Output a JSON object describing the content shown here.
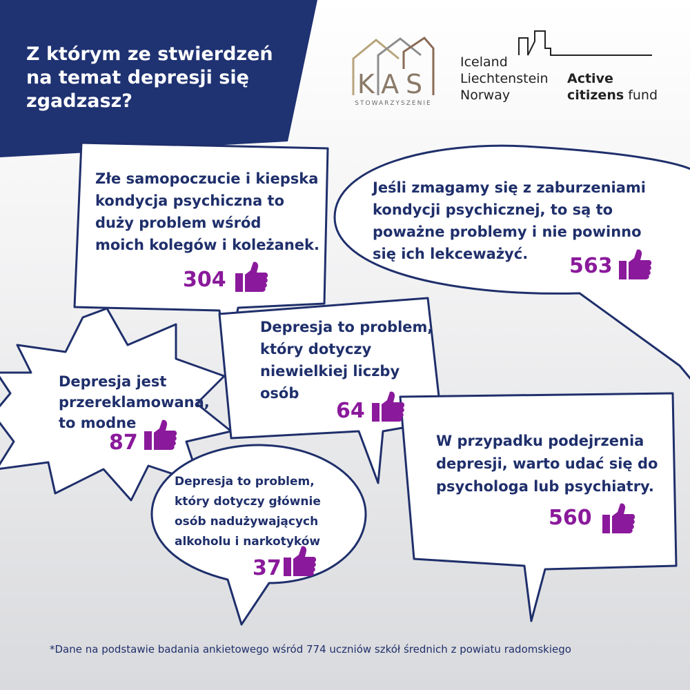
{
  "header": {
    "title": [
      "Z którym ze stwierdzeń",
      "na temat depresji się",
      "zgadzasz?"
    ]
  },
  "logos": {
    "kas": {
      "letters": "KAS",
      "subtitle": "STOWARZYSZENIE"
    },
    "eea": {
      "countries": [
        "Iceland",
        "Liechtenstein",
        "Norway"
      ],
      "active": "Active",
      "citizens": "citizens",
      "fund": "fund"
    }
  },
  "bubbles": [
    {
      "lines": [
        "Złe samopoczucie i kiepska",
        "kondycja psychiczna to",
        "duży problem wśród",
        "moich kolegów i koleżanek."
      ],
      "votes": 304
    },
    {
      "lines": [
        "Jeśli zmagamy się z zaburzeniami",
        "kondycji psychicznej, to są to",
        "poważne problemy i nie powinno",
        "się ich lekceważyć."
      ],
      "votes": 563
    },
    {
      "lines": [
        "Depresja jest",
        "przereklamowana,",
        "to modne"
      ],
      "votes": 87
    },
    {
      "lines": [
        "Depresja to problem,",
        "który dotyczy",
        "niewielkiej liczby",
        "osób"
      ],
      "votes": 64
    },
    {
      "lines": [
        "Depresja to problem,",
        "który dotyczy głównie",
        "osób nadużywających",
        "alkoholu i narkotyków"
      ],
      "votes": 37
    },
    {
      "lines": [
        "W przypadku podejrzenia",
        "depresji, warto udać się do",
        "psychologa lub psychiatry."
      ],
      "votes": 560
    }
  ],
  "footnote": "*Dane na podstawie badania ankietowego wśród 774 uczniów szkół średnich z powiatu radomskiego"
}
